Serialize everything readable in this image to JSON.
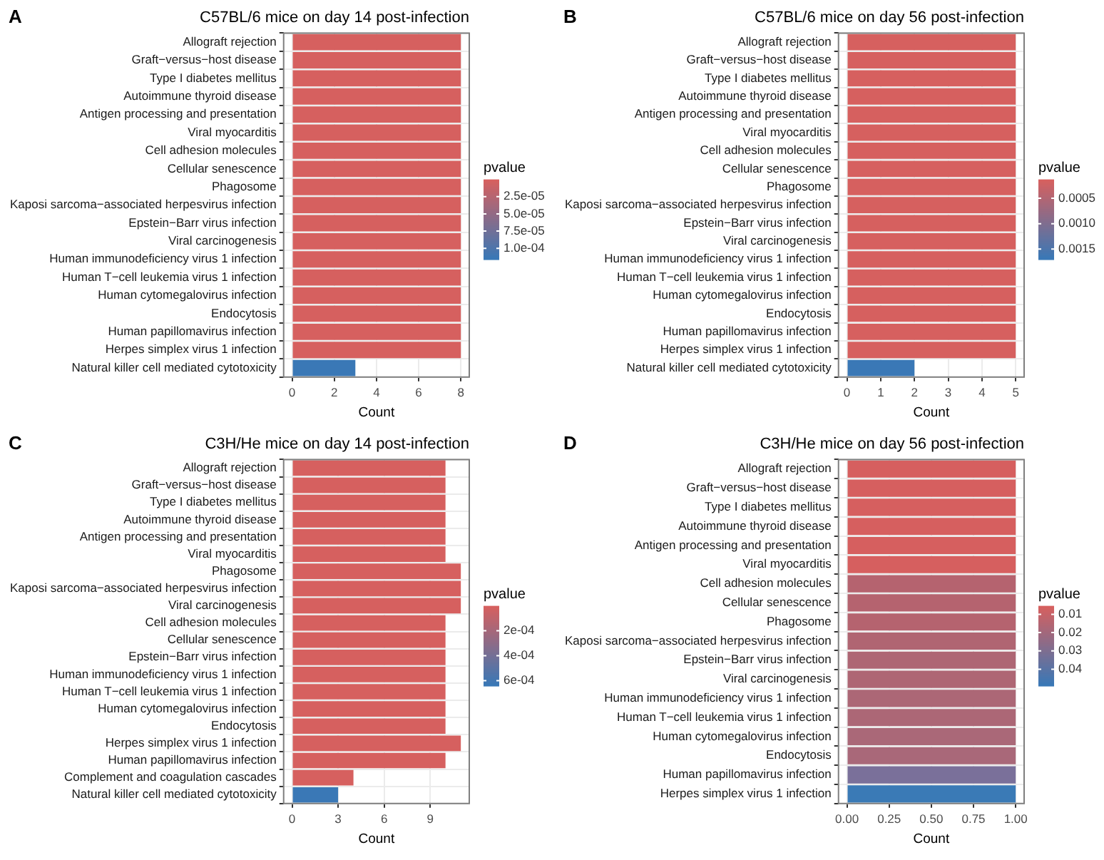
{
  "chart_data": [
    {
      "type": "bar",
      "orientation": "horizontal",
      "title": "C57BL/6 mice on day 14 post-infection",
      "xlabel": "Count",
      "annotations": [
        "A"
      ],
      "categories": [
        "Allograft rejection",
        "Graft−versus−host disease",
        "Type I diabetes mellitus",
        "Autoimmune thyroid disease",
        "Antigen processing and presentation",
        "Viral myocarditis",
        "Cell adhesion molecules",
        "Cellular senescence",
        "Phagosome",
        "Kaposi sarcoma−associated herpesvirus infection",
        "Epstein−Barr virus infection",
        "Viral carcinogenesis",
        "Human immunodeficiency virus 1 infection",
        "Human T−cell leukemia virus 1 infection",
        "Human cytomegalovirus infection",
        "Endocytosis",
        "Human papillomavirus infection",
        "Herpes simplex virus 1 infection",
        "Natural killer cell mediated cytotoxicity"
      ],
      "values": [
        8,
        8,
        8,
        8,
        8,
        8,
        8,
        8,
        8,
        8,
        8,
        8,
        8,
        8,
        8,
        8,
        8,
        8,
        3
      ],
      "colors": [
        "#d6605f",
        "#d6605f",
        "#d6605f",
        "#d6605f",
        "#d6605f",
        "#d6605f",
        "#d6605f",
        "#d6605f",
        "#d6605f",
        "#d6605f",
        "#d6605f",
        "#d6605f",
        "#d6605f",
        "#d6605f",
        "#d6605f",
        "#d6605f",
        "#d6605f",
        "#d6605f",
        "#3a78b6"
      ],
      "xlim": [
        -0.4,
        8.4
      ],
      "xticks": [
        0,
        2,
        4,
        6,
        8
      ],
      "grid": true,
      "clabel": "pvalue",
      "clim": [
        0,
        0.000116
      ],
      "cticks": [
        {
          "value": 2.5e-05,
          "label": "2.5e-05"
        },
        {
          "value": 5e-05,
          "label": "5.0e-05"
        },
        {
          "value": 7.5e-05,
          "label": "7.5e-05"
        },
        {
          "value": 0.0001,
          "label": "1.0e-04"
        }
      ]
    },
    {
      "type": "bar",
      "orientation": "horizontal",
      "title": "C57BL/6 mice on day 56 post-infection",
      "xlabel": "Count",
      "annotations": [
        "B"
      ],
      "categories": [
        "Allograft rejection",
        "Graft−versus−host disease",
        "Type I diabetes mellitus",
        "Autoimmune thyroid disease",
        "Antigen processing and presentation",
        "Viral myocarditis",
        "Cell adhesion molecules",
        "Cellular senescence",
        "Phagosome",
        "Kaposi sarcoma−associated herpesvirus infection",
        "Epstein−Barr virus infection",
        "Viral carcinogenesis",
        "Human immunodeficiency virus 1 infection",
        "Human T−cell leukemia virus 1 infection",
        "Human cytomegalovirus infection",
        "Endocytosis",
        "Human papillomavirus infection",
        "Herpes simplex virus 1 infection",
        "Natural killer cell mediated cytotoxicity"
      ],
      "values": [
        5,
        5,
        5,
        5,
        5,
        5,
        5,
        5,
        5,
        5,
        5,
        5,
        5,
        5,
        5,
        5,
        5,
        5,
        2
      ],
      "colors": [
        "#d6605f",
        "#d6605f",
        "#d6605f",
        "#d6605f",
        "#d6605f",
        "#d6605f",
        "#d6605f",
        "#d6605f",
        "#d6605f",
        "#d6605f",
        "#d6605f",
        "#d6605f",
        "#d6605f",
        "#d6605f",
        "#d6605f",
        "#d6605f",
        "#d6605f",
        "#d6605f",
        "#3a78b6"
      ],
      "xlim": [
        -0.25,
        5.25
      ],
      "xticks": [
        0,
        1,
        2,
        3,
        4,
        5
      ],
      "grid": true,
      "clabel": "pvalue",
      "clim": [
        0.00013,
        0.0017
      ],
      "cticks": [
        {
          "value": 0.0005,
          "label": "0.0005"
        },
        {
          "value": 0.001,
          "label": "0.0010"
        },
        {
          "value": 0.0015,
          "label": "0.0015"
        }
      ]
    },
    {
      "type": "bar",
      "orientation": "horizontal",
      "title": "C3H/He mice on day 14 post-infection",
      "xlabel": "Count",
      "annotations": [
        "C"
      ],
      "categories": [
        "Allograft rejection",
        "Graft−versus−host disease",
        "Type I diabetes mellitus",
        "Autoimmune thyroid disease",
        "Antigen processing and presentation",
        "Viral myocarditis",
        "Phagosome",
        "Kaposi sarcoma−associated herpesvirus infection",
        "Viral carcinogenesis",
        "Cell adhesion molecules",
        "Cellular senescence",
        "Epstein−Barr virus infection",
        "Human immunodeficiency virus 1 infection",
        "Human T−cell leukemia virus 1 infection",
        "Human cytomegalovirus infection",
        "Endocytosis",
        "Herpes simplex virus 1 infection",
        "Human papillomavirus infection",
        "Complement and coagulation cascades",
        "Natural killer cell mediated cytotoxicity"
      ],
      "values": [
        10,
        10,
        10,
        10,
        10,
        10,
        11,
        11,
        11,
        10,
        10,
        10,
        10,
        10,
        10,
        10,
        11,
        10,
        4,
        3
      ],
      "colors": [
        "#d6605f",
        "#d6605f",
        "#d6605f",
        "#d6605f",
        "#d6605f",
        "#d6605f",
        "#d6605f",
        "#d6605f",
        "#d6605f",
        "#d6605f",
        "#d6605f",
        "#d6605f",
        "#d6605f",
        "#d6605f",
        "#d6605f",
        "#d6605f",
        "#d6605f",
        "#d6605f",
        "#d6605f",
        "#3a78b6"
      ],
      "xlim": [
        -0.55,
        11.55
      ],
      "xticks": [
        0,
        3,
        6,
        9
      ],
      "grid": true,
      "clabel": "pvalue",
      "clim": [
        0,
        0.00064
      ],
      "cticks": [
        {
          "value": 0.0002,
          "label": "2e-04"
        },
        {
          "value": 0.0004,
          "label": "4e-04"
        },
        {
          "value": 0.0006,
          "label": "6e-04"
        }
      ]
    },
    {
      "type": "bar",
      "orientation": "horizontal",
      "title": "C3H/He mice on day 56 post-infection",
      "xlabel": "Count",
      "annotations": [
        "D"
      ],
      "categories": [
        "Allograft rejection",
        "Graft−versus−host disease",
        "Type I diabetes mellitus",
        "Autoimmune thyroid disease",
        "Antigen processing and presentation",
        "Viral myocarditis",
        "Cell adhesion molecules",
        "Cellular senescence",
        "Phagosome",
        "Kaposi sarcoma−associated herpesvirus infection",
        "Epstein−Barr virus infection",
        "Viral carcinogenesis",
        "Human immunodeficiency virus 1 infection",
        "Human T−cell leukemia virus 1 infection",
        "Human cytomegalovirus infection",
        "Endocytosis",
        "Human papillomavirus infection",
        "Herpes simplex virus 1 infection"
      ],
      "values": [
        1,
        1,
        1,
        1,
        1,
        1,
        1,
        1,
        1,
        1,
        1,
        1,
        1,
        1,
        1,
        1,
        1,
        1
      ],
      "colors": [
        "#d65f5f",
        "#d65f5f",
        "#d65f5f",
        "#d65f5f",
        "#d65f5f",
        "#d65f5f",
        "#b5636f",
        "#b5636f",
        "#b5636f",
        "#b06572",
        "#ae6674",
        "#ae6674",
        "#ac6776",
        "#ac6776",
        "#aa6878",
        "#a96879",
        "#7a709a",
        "#3a7ab6"
      ],
      "xlim": [
        -0.05,
        1.05
      ],
      "xticks": [
        {
          "value": 0,
          "label": "0.00"
        },
        {
          "value": 0.25,
          "label": "0.25"
        },
        {
          "value": 0.5,
          "label": "0.50"
        },
        {
          "value": 0.75,
          "label": "0.75"
        },
        {
          "value": 1,
          "label": "1.00"
        }
      ],
      "grid": true,
      "clabel": "pvalue",
      "clim": [
        0.0054,
        0.049
      ],
      "cticks": [
        0.01,
        0.02,
        0.03,
        0.04
      ]
    }
  ]
}
